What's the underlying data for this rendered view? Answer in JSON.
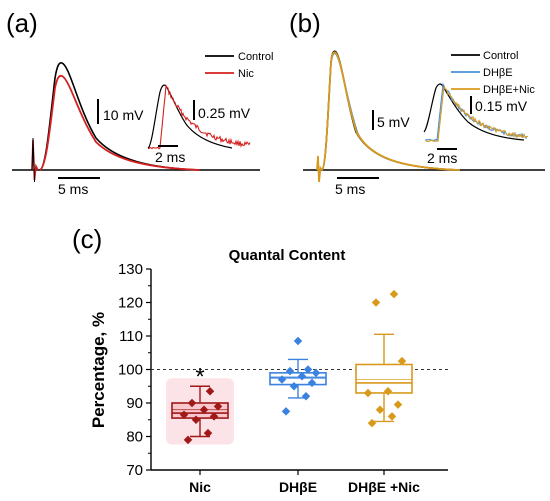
{
  "panels": {
    "a": {
      "label": "(a)",
      "legend": [
        {
          "name": "Control",
          "color": "#000000"
        },
        {
          "name": "Nic",
          "color": "#d42020"
        }
      ],
      "scale_main_y": "10 mV",
      "scale_inset_y": "0.25 mV",
      "scale_inset_x": "2 ms",
      "scale_main_x": "5 ms"
    },
    "b": {
      "label": "(b)",
      "legend": [
        {
          "name": "Control",
          "color": "#000000"
        },
        {
          "name": "DHβE",
          "color": "#4a90d9"
        },
        {
          "name": "DHβE+Nic",
          "color": "#d99a1c"
        }
      ],
      "scale_main_y": "5 mV",
      "scale_inset_y": "0.15 mV",
      "scale_inset_x": "2 ms",
      "scale_main_x": "5 ms"
    },
    "c": {
      "label": "(c)"
    }
  },
  "chart_data": [
    {
      "type": "line",
      "panel": "a",
      "series": [
        {
          "name": "Control",
          "color": "#000000"
        },
        {
          "name": "Nic",
          "color": "#d42020"
        }
      ]
    },
    {
      "type": "line",
      "panel": "b",
      "series": [
        {
          "name": "Control",
          "color": "#000000"
        },
        {
          "name": "DHβE",
          "color": "#4a90d9"
        },
        {
          "name": "DHβE+Nic",
          "color": "#d99a1c"
        }
      ]
    },
    {
      "type": "box",
      "panel": "c",
      "title": "Quantal Content",
      "ylabel": "Percentage, %",
      "ylim": [
        70,
        130
      ],
      "yticks": [
        70,
        80,
        90,
        100,
        110,
        120,
        130
      ],
      "reference_line": 100,
      "categories": [
        "Nic",
        "DHβE",
        "DHβE +Nic"
      ],
      "groups": [
        {
          "name": "Nic",
          "color": "#a01818",
          "fill": "#f7c9cf",
          "q1": 85.5,
          "median": 87,
          "q3": 90,
          "mean": 88,
          "whisker_low": 80,
          "whisker_high": 95,
          "points": [
            79,
            81,
            85,
            86,
            86.5,
            88,
            89,
            90,
            93.5
          ],
          "significance": "*"
        },
        {
          "name": "DHβE",
          "color": "#3b82e0",
          "fill": "#ffffff",
          "q1": 95.5,
          "median": 97.5,
          "q3": 99,
          "mean": 97.8,
          "whisker_low": 91.5,
          "whisker_high": 103,
          "points": [
            87.5,
            92,
            95,
            96,
            97,
            98,
            99,
            99.5,
            100,
            108.5
          ]
        },
        {
          "name": "DHβE +Nic",
          "color": "#d99a1c",
          "fill": "#ffffff",
          "q1": 93,
          "median": 96,
          "q3": 101.5,
          "mean": 97,
          "whisker_low": 84.5,
          "whisker_high": 110.5,
          "points": [
            84,
            86,
            88,
            89.5,
            93,
            93.5,
            102.5,
            120,
            122.5
          ]
        }
      ]
    }
  ]
}
